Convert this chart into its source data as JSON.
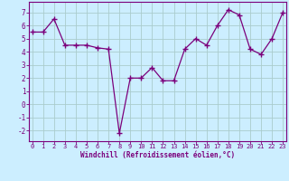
{
  "x": [
    0,
    1,
    2,
    3,
    4,
    5,
    6,
    7,
    8,
    9,
    10,
    11,
    12,
    13,
    14,
    15,
    16,
    17,
    18,
    19,
    20,
    21,
    22,
    23
  ],
  "y": [
    5.5,
    5.5,
    6.5,
    4.5,
    4.5,
    4.5,
    4.3,
    4.2,
    -2.2,
    2.0,
    2.0,
    2.8,
    1.8,
    1.8,
    4.2,
    5.0,
    4.5,
    6.0,
    7.2,
    6.8,
    4.2,
    3.8,
    5.0,
    7.0
  ],
  "line_color": "#7b007b",
  "marker_color": "#7b007b",
  "bg_color": "#cceeff",
  "grid_color": "#aacccc",
  "axis_color": "#7b007b",
  "tick_color": "#7b007b",
  "xlabel": "Windchill (Refroidissement éolien,°C)",
  "xlabel_color": "#7b007b",
  "ylim": [
    -2.8,
    7.8
  ],
  "yticks": [
    -2,
    -1,
    0,
    1,
    2,
    3,
    4,
    5,
    6,
    7
  ],
  "xticks": [
    0,
    1,
    2,
    3,
    4,
    5,
    6,
    7,
    8,
    9,
    10,
    11,
    12,
    13,
    14,
    15,
    16,
    17,
    18,
    19,
    20,
    21,
    22,
    23
  ],
  "xlim": [
    -0.3,
    23.3
  ]
}
